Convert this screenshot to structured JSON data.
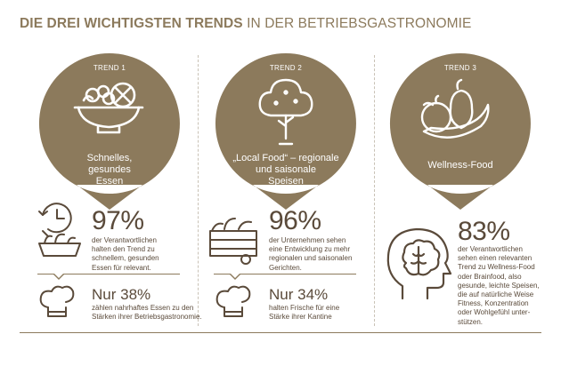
{
  "header": {
    "title_bold": "DIE DREI WICHTIGSTEN TRENDS",
    "title_light": "IN DER BETRIEBSGASTRONOMIE"
  },
  "colors": {
    "accent": "#8c7a5c",
    "text": "#5a4a3a",
    "divider": "#c9c2b6"
  },
  "trends": [
    {
      "label": "TREND 1",
      "icon": "salad-bowl-icon",
      "bubble_lines": [
        "Schnelles,",
        "gesundes",
        "Essen"
      ],
      "stat_icon": "clock-food-basket-icon",
      "percent": "97%",
      "desc_lines": [
        "der Verantwortlichen",
        "halten den Trend zu",
        "schnellem, gesunden",
        "Essen für relevant."
      ],
      "sub_icon": "chef-hat-icon",
      "sub_percent": "Nur 38%",
      "sub_desc_lines": [
        "zählen nahrhaftes Essen zu den",
        "Stärken ihrer Betriebsgastronomie."
      ]
    },
    {
      "label": "TREND 2",
      "icon": "tree-icon",
      "bubble_lines": [
        "„Local Food“ – regionale",
        "und saisonale",
        "Speisen"
      ],
      "stat_icon": "vegetable-crate-icon",
      "percent": "96%",
      "desc_lines": [
        "der Unternehmen sehen",
        "eine Entwicklung zu mehr",
        "regionalen und saisonalen",
        "Gerichten."
      ],
      "sub_icon": "chef-hat-icon",
      "sub_percent": "Nur 34%",
      "sub_desc_lines": [
        "halten Frische für eine",
        "Stärke ihrer Kantine"
      ]
    },
    {
      "label": "TREND 3",
      "icon": "fruits-icon",
      "bubble_lines": [
        "Wellness-Food"
      ],
      "stat_icon": "head-brain-icon",
      "percent": "83%",
      "desc_lines": [
        "der Verantwortlichen",
        "sehen einen relevanten",
        "Trend zu Wellness-Food",
        "oder Brainfood, also",
        "gesunde, leichte Speisen,",
        "die auf natürliche Weise",
        "Fitness, Konzentration",
        "oder Wohlgefühl unter-",
        "stützen."
      ]
    }
  ]
}
